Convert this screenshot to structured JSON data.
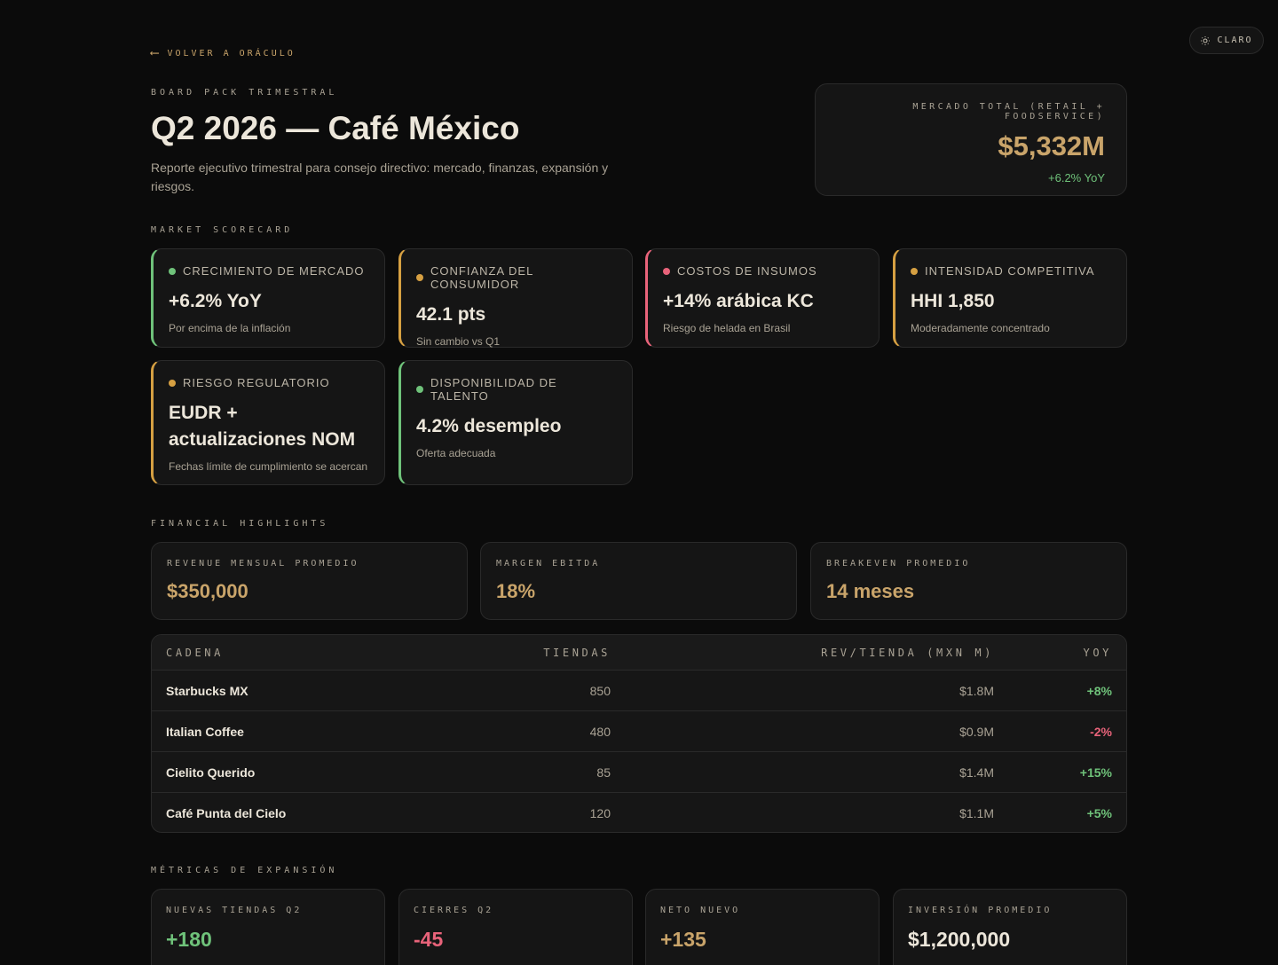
{
  "theme_toggle": {
    "label": "CLARO",
    "icon": "sun-icon"
  },
  "nav": {
    "back_label": "VOLVER A ORÁCULO",
    "back_icon": "arrow-left-icon"
  },
  "header": {
    "eyebrow": "BOARD PACK TRIMESTRAL",
    "title": "Q2 2026 — Café México",
    "description": "Reporte ejecutivo trimestral para consejo directivo: mercado, finanzas, expansión y riesgos."
  },
  "market_total": {
    "label": "MERCADO TOTAL (RETAIL + FOODSERVICE)",
    "value": "$5,332M",
    "delta": "+6.2% YoY"
  },
  "scorecard": {
    "label": "MARKET SCORECARD",
    "items": [
      {
        "title": "CRECIMIENTO DE MERCADO",
        "value": "+6.2% YoY",
        "note": "Por encima de la inflación",
        "status": "green"
      },
      {
        "title": "CONFIANZA DEL CONSUMIDOR",
        "value": "42.1 pts",
        "note": "Sin cambio vs Q1",
        "status": "amber"
      },
      {
        "title": "COSTOS DE INSUMOS",
        "value": "+14% arábica KC",
        "note": "Riesgo de helada en Brasil",
        "status": "red"
      },
      {
        "title": "INTENSIDAD COMPETITIVA",
        "value": "HHI 1,850",
        "note": "Moderadamente concentrado",
        "status": "amber"
      },
      {
        "title": "RIESGO REGULATORIO",
        "value": "EUDR + actualizaciones NOM",
        "note": "Fechas límite de cumplimiento se acercan",
        "status": "amber"
      },
      {
        "title": "DISPONIBILIDAD DE TALENTO",
        "value": "4.2% desempleo",
        "note": "Oferta adecuada",
        "status": "green"
      }
    ]
  },
  "financial": {
    "label": "FINANCIAL HIGHLIGHTS",
    "cards": [
      {
        "label": "REVENUE MENSUAL PROMEDIO",
        "value": "$350,000"
      },
      {
        "label": "MARGEN EBITDA",
        "value": "18%"
      },
      {
        "label": "BREAKEVEN PROMEDIO",
        "value": "14 meses"
      }
    ],
    "table": {
      "headers": {
        "chain": "CADENA",
        "stores": "TIENDAS",
        "rev": "REV/TIENDA (MXN M)",
        "yoy": "YOY"
      },
      "rows": [
        {
          "chain": "Starbucks MX",
          "stores": "850",
          "rev": "$1.8M",
          "yoy": "+8%"
        },
        {
          "chain": "Italian Coffee",
          "stores": "480",
          "rev": "$0.9M",
          "yoy": "-2%"
        },
        {
          "chain": "Cielito Querido",
          "stores": "85",
          "rev": "$1.4M",
          "yoy": "+15%"
        },
        {
          "chain": "Café Punta del Cielo",
          "stores": "120",
          "rev": "$1.1M",
          "yoy": "+5%"
        }
      ]
    }
  },
  "expansion": {
    "label": "MÉTRICAS DE EXPANSIÓN",
    "cards": [
      {
        "label": "NUEVAS TIENDAS Q2",
        "value": "+180"
      },
      {
        "label": "CIERRES Q2",
        "value": "-45"
      },
      {
        "label": "NETO NUEVO",
        "value": "+135"
      },
      {
        "label": "INVERSIÓN PROMEDIO",
        "value": "$1,200,000"
      }
    ]
  },
  "colors": {
    "background": "#0b0b0b",
    "card": "#151515",
    "accent_gold": "#c9a46a",
    "positive": "#6fc27a",
    "warning": "#d6a042",
    "negative": "#e8637a"
  }
}
